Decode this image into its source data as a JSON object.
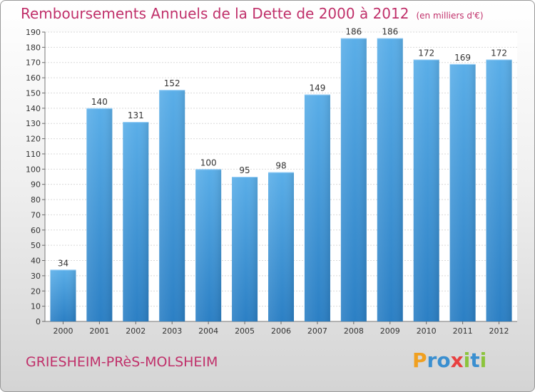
{
  "chart_data": {
    "type": "bar",
    "title": "Remboursements Annuels de la Dette de 2000 à 2012",
    "subtitle": "(en milliers d'€)",
    "categories": [
      "2000",
      "2001",
      "2002",
      "2003",
      "2004",
      "2005",
      "2006",
      "2007",
      "2008",
      "2009",
      "2010",
      "2011",
      "2012"
    ],
    "values": [
      34,
      140,
      131,
      152,
      100,
      95,
      98,
      149,
      186,
      186,
      172,
      169,
      172
    ],
    "ylim": [
      0,
      190
    ],
    "yticks": [
      0,
      10,
      20,
      30,
      40,
      50,
      60,
      70,
      80,
      90,
      100,
      110,
      120,
      130,
      140,
      150,
      160,
      170,
      180,
      190
    ],
    "grid": true,
    "bar_color_top": "#5aaee8",
    "bar_color_bottom": "#2b7fc4",
    "xlabel": "",
    "ylabel": ""
  },
  "footer": {
    "city": "GRIESHEIM-PRèS-MOLSHEIM",
    "brand_letters": [
      "P",
      "r",
      "o",
      "x",
      "i",
      "t",
      "i"
    ],
    "brand_colors": [
      "#f0a020",
      "#3a8fd0",
      "#3a8fd0",
      "#e84040",
      "#8cc43c",
      "#3a8fd0",
      "#8cc43c"
    ]
  },
  "colors": {
    "title": "#c0306a",
    "grid": "#d9d9d9"
  }
}
